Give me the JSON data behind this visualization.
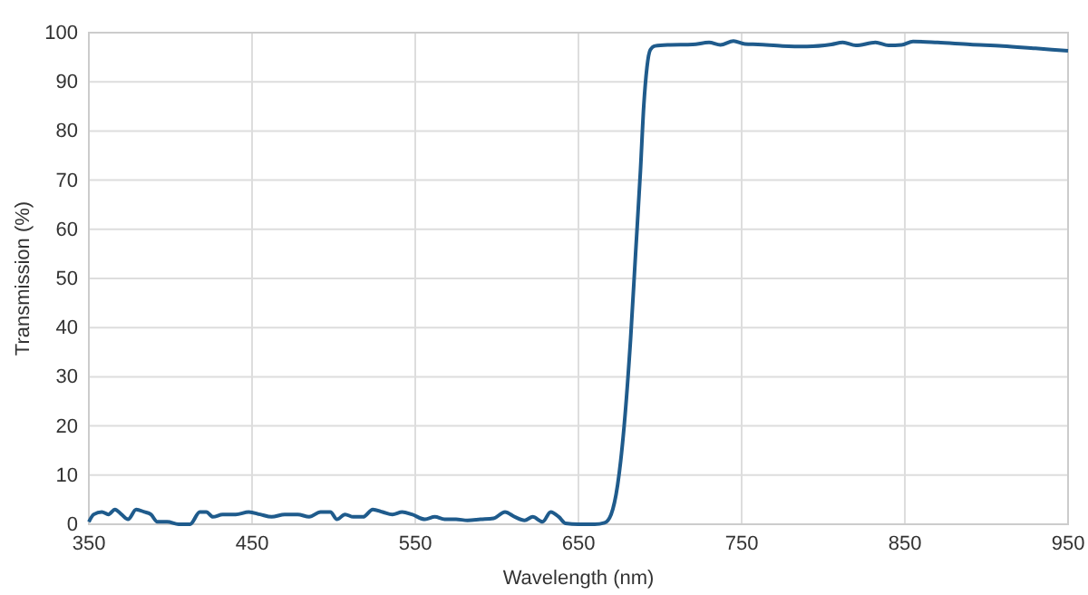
{
  "chart_data": {
    "type": "line",
    "xlabel": "Wavelength (nm)",
    "ylabel": "Transmission (%)",
    "xlim": [
      350,
      950
    ],
    "xticks": [
      350,
      450,
      550,
      650,
      750,
      850,
      950
    ],
    "ylim": [
      0,
      100
    ],
    "yticks": [
      0,
      10,
      20,
      30,
      40,
      50,
      60,
      70,
      80,
      90,
      100
    ],
    "grid": true,
    "line_style": "solid",
    "x": [
      350,
      353,
      358,
      362,
      366,
      370,
      374,
      379,
      384,
      388,
      392,
      398,
      405,
      412,
      418,
      422,
      426,
      432,
      440,
      448,
      455,
      462,
      470,
      478,
      485,
      492,
      498,
      502,
      507,
      512,
      518,
      524,
      530,
      536,
      542,
      548,
      556,
      562,
      568,
      575,
      582,
      590,
      598,
      605,
      611,
      617,
      622,
      628,
      633,
      638,
      642,
      650,
      660,
      666,
      670,
      674,
      678,
      682,
      685,
      688,
      690,
      692,
      694,
      697,
      705,
      720,
      730,
      737,
      745,
      752,
      760,
      775,
      790,
      805,
      812,
      820,
      832,
      840,
      848,
      855,
      870,
      890,
      910,
      930,
      950
    ],
    "series": [
      {
        "color": "#1f5b8c",
        "values": [
          0.5,
          2,
          2.5,
          2,
          3,
          2,
          1,
          3,
          2.5,
          2,
          0.5,
          0.5,
          0,
          0,
          2.5,
          2.5,
          1.5,
          2,
          2,
          2.5,
          2,
          1.5,
          2,
          2,
          1.5,
          2.5,
          2.5,
          1,
          2,
          1.5,
          1.5,
          3,
          2.5,
          2,
          2.5,
          2,
          1,
          1.5,
          1,
          1,
          0.8,
          1,
          1.2,
          2.5,
          1.5,
          0.8,
          1.5,
          0.5,
          2.5,
          1.5,
          0.2,
          0,
          0,
          0.3,
          2,
          8,
          20,
          38,
          55,
          72,
          85,
          93,
          96.5,
          97.3,
          97.5,
          97.6,
          98,
          97.5,
          98.3,
          97.7,
          97.6,
          97.3,
          97.2,
          97.6,
          98,
          97.4,
          98,
          97.4,
          97.5,
          98.2,
          98,
          97.6,
          97.3,
          96.8,
          96.3
        ]
      }
    ]
  }
}
